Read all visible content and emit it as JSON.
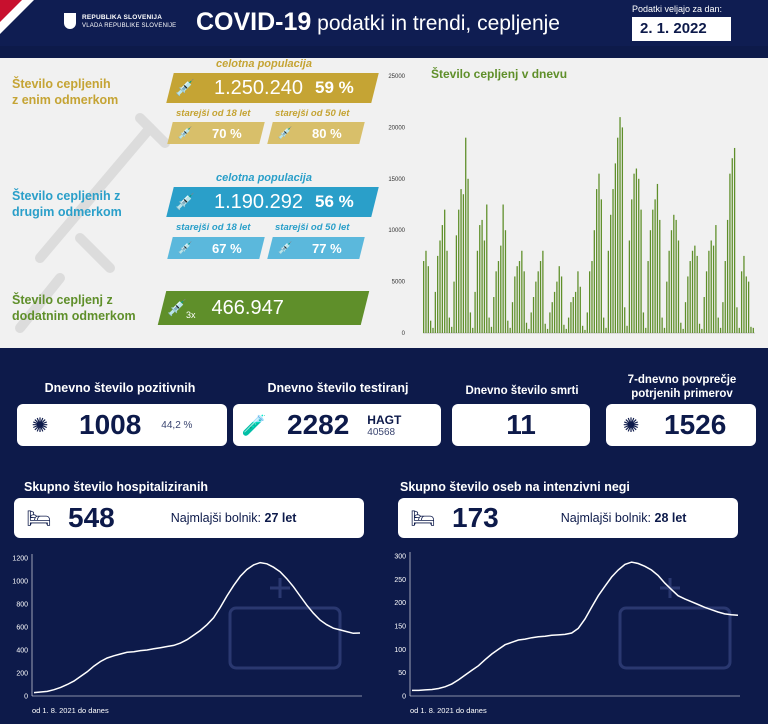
{
  "header": {
    "org_line1": "REPUBLIKA SLOVENIJA",
    "org_line2": "VLADA REPUBLIKE SLOVENIJE",
    "title_main": "COVID-19",
    "title_sub": " podatki in trendi, cepljenje",
    "valid_label": "Podatki veljajo za dan:",
    "valid_date": "2. 1. 2022"
  },
  "vaccination": {
    "first": {
      "label_line1": "Število cepljenih",
      "label_line2": "z enim odmerkom",
      "pop_label": "celotna populacija",
      "count": "1.250.240",
      "pct": "59 %",
      "age18_label": "starejši od 18 let",
      "age18_pct": "70 %",
      "age50_label": "starejši od 50 let",
      "age50_pct": "80 %",
      "color": "#c5a434",
      "color_light": "#d8bf6a"
    },
    "second": {
      "label_line1": "Število cepljenih z",
      "label_line2": "drugim odmerkom",
      "pop_label": "celotna populacija",
      "count": "1.190.292",
      "pct": "56 %",
      "age18_label": "starejši od 18 let",
      "age18_pct": "67 %",
      "age50_label": "starejši od 50 let",
      "age50_pct": "77 %",
      "color": "#2a9fc9",
      "color_light": "#5bb8dc"
    },
    "booster": {
      "label_line1": "Število cepljenj z",
      "label_line2": "dodatnim odmerkom",
      "count": "466.947",
      "badge": "3x",
      "color": "#5f8f2a"
    }
  },
  "cards": {
    "positive": {
      "label": "Dnevno število pozitivnih",
      "value": "1008",
      "pct": "44,2 %"
    },
    "tests": {
      "label": "Dnevno število testiranj",
      "value": "2282",
      "hagt_label": "HAGT",
      "hagt_value": "40568"
    },
    "deaths": {
      "label": "Dnevno število smrti",
      "value": "11"
    },
    "avg7": {
      "label_line1": "7-dnevno povprečje",
      "label_line2": "potrjenih primerov",
      "value": "1526"
    },
    "hosp": {
      "label": "Skupno število hospitaliziranih",
      "value": "548",
      "youngest_label": "Najmlajši bolnik: ",
      "youngest_value": "27 let"
    },
    "icu": {
      "label": "Skupno število oseb na intenzivni negi",
      "value": "173",
      "youngest_label": "Najmlajši bolnik: ",
      "youngest_value": "28 let"
    }
  },
  "chart_data": [
    {
      "type": "bar",
      "title": "Število cepljenj v dnevu",
      "ylim": [
        0,
        25000
      ],
      "yticks": [
        0,
        5000,
        10000,
        15000,
        20000,
        25000
      ],
      "color": "#5f8f2a",
      "values": [
        7000,
        8000,
        6500,
        1200,
        500,
        4000,
        7500,
        9000,
        10500,
        12000,
        8000,
        1500,
        600,
        5000,
        9500,
        12000,
        14000,
        13500,
        19000,
        15000,
        2000,
        500,
        4000,
        8000,
        10500,
        11000,
        9000,
        12500,
        1500,
        600,
        3500,
        6000,
        7000,
        8500,
        12500,
        10000,
        1200,
        500,
        3000,
        5500,
        6500,
        7000,
        8000,
        6000,
        1000,
        400,
        2000,
        3500,
        5000,
        6000,
        7000,
        8000,
        900,
        400,
        2000,
        3000,
        4000,
        5000,
        6500,
        5500,
        800,
        400,
        1500,
        3000,
        3500,
        4000,
        6000,
        4500,
        700,
        300,
        2000,
        6000,
        7000,
        10000,
        14000,
        15500,
        13000,
        1500,
        500,
        8000,
        11500,
        14000,
        16500,
        19000,
        21000,
        20000,
        2500,
        700,
        9000,
        13000,
        15500,
        16000,
        15000,
        12000,
        2000,
        500,
        7000,
        10000,
        12000,
        13000,
        14500,
        11000,
        1500,
        500,
        5000,
        8000,
        10000,
        11500,
        11000,
        9000,
        1000,
        400,
        3000,
        5500,
        7000,
        8000,
        8500,
        7500,
        900,
        400,
        3500,
        6000,
        8000,
        9000,
        8500,
        10500,
        1500,
        500,
        3000,
        7000,
        11000,
        15500,
        17000,
        18000,
        2500,
        500,
        6000,
        7500,
        5500,
        5000,
        600,
        500
      ]
    },
    {
      "type": "line",
      "xlabel": "od 1. 8. 2021 do danes",
      "ylim": [
        0,
        1200
      ],
      "yticks": [
        0,
        200,
        400,
        600,
        800,
        1000,
        1200
      ],
      "color": "#ffffff",
      "values": [
        30,
        35,
        40,
        55,
        75,
        100,
        130,
        170,
        210,
        260,
        300,
        330,
        350,
        365,
        380,
        385,
        395,
        400,
        410,
        420,
        430,
        440,
        460,
        490,
        530,
        570,
        620,
        680,
        770,
        870,
        960,
        1040,
        1100,
        1140,
        1160,
        1150,
        1120,
        1080,
        1020,
        950,
        870,
        790,
        720,
        660,
        620,
        590,
        575,
        560,
        545,
        548
      ]
    },
    {
      "type": "line",
      "xlabel": "od 1. 8. 2021 do danes",
      "ylim": [
        0,
        300
      ],
      "yticks": [
        0,
        50,
        100,
        150,
        200,
        250,
        300
      ],
      "color": "#ffffff",
      "values": [
        12,
        12,
        13,
        14,
        16,
        20,
        26,
        35,
        45,
        55,
        65,
        78,
        90,
        100,
        110,
        115,
        120,
        122,
        125,
        127,
        128,
        130,
        131,
        132,
        135,
        145,
        165,
        190,
        215,
        235,
        255,
        270,
        282,
        287,
        284,
        278,
        270,
        258,
        242,
        228,
        215,
        208,
        202,
        196,
        190,
        185,
        180,
        176,
        174,
        173
      ]
    }
  ]
}
